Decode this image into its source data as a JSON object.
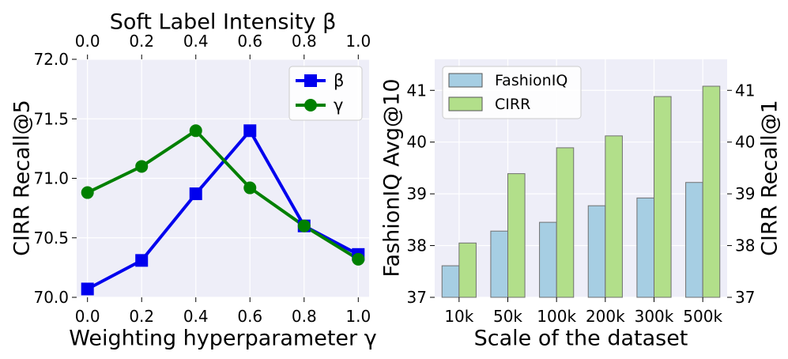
{
  "chart_data": [
    {
      "type": "line",
      "title": "",
      "xlabel": "Weighting hyperparameter γ",
      "xlabel_top": "Soft Label Intensity β",
      "ylabel": "CIRR Recall@5",
      "x": [
        0.0,
        0.2,
        0.4,
        0.6,
        0.8,
        1.0
      ],
      "x_tick_labels": [
        "0.0",
        "0.2",
        "0.4",
        "0.6",
        "0.8",
        "1.0"
      ],
      "y_tick_labels": [
        "70.0",
        "70.5",
        "71.0",
        "71.5",
        "72.0"
      ],
      "y_ticks": [
        70.0,
        70.5,
        71.0,
        71.5,
        72.0
      ],
      "xlim": [
        -0.04,
        1.04
      ],
      "ylim": [
        70.0,
        72.0
      ],
      "grid": true,
      "legend_position": "top-right",
      "series": [
        {
          "name": "β",
          "color": "#0000ee",
          "marker": "square",
          "values": [
            70.07,
            70.31,
            70.87,
            71.4,
            70.6,
            70.36
          ]
        },
        {
          "name": "γ",
          "color": "#008000",
          "marker": "circle",
          "values": [
            70.88,
            71.1,
            71.4,
            70.92,
            70.6,
            70.32
          ]
        }
      ]
    },
    {
      "type": "bar",
      "title": "",
      "xlabel": "Scale of the dataset",
      "ylabel": "FashionIQ Avg@10",
      "ylabel_right": "CIRR Recall@1",
      "categories": [
        "10k",
        "50k",
        "100k",
        "200k",
        "300k",
        "500k"
      ],
      "y_tick_labels": [
        "37",
        "38",
        "39",
        "40",
        "41"
      ],
      "y_ticks": [
        37,
        38,
        39,
        40,
        41
      ],
      "ylim": [
        37,
        41.6
      ],
      "grid": true,
      "legend_position": "top-left",
      "series": [
        {
          "name": "FashionIQ",
          "color": "#a6cee3",
          "values": [
            37.61,
            38.28,
            38.45,
            38.77,
            38.92,
            39.22
          ]
        },
        {
          "name": "CIRR",
          "color": "#b2df8a",
          "values": [
            38.05,
            39.39,
            39.89,
            40.12,
            40.88,
            41.08
          ]
        }
      ]
    }
  ]
}
